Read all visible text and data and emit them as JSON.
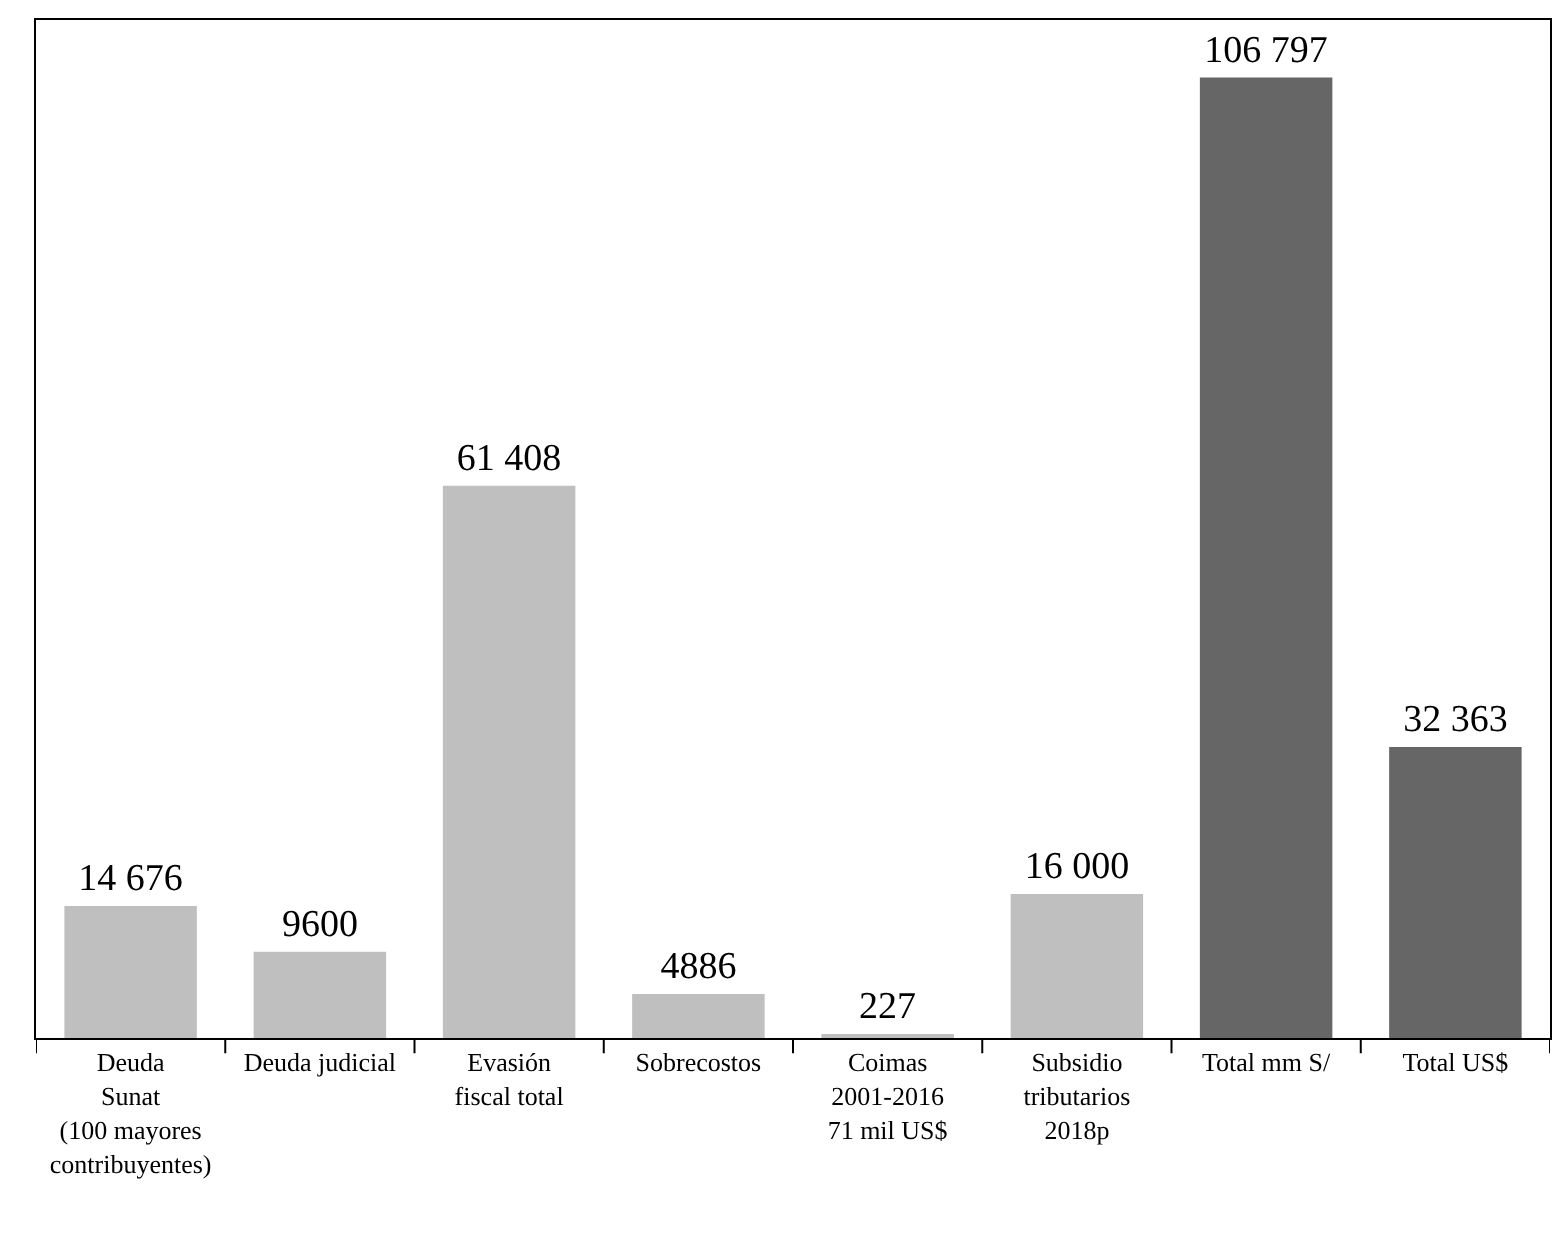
{
  "chart_data": {
    "type": "bar",
    "categories": [
      "Deuda\nSunat\n(100 mayores\ncontribuyentes)",
      "Deuda judicial",
      "Evasión\nfiscal total",
      "Sobrecostos",
      "Coimas\n2001-2016\n71 mil US$",
      "Subsidio\ntributarios\n2018p",
      "Total mm S/",
      "Total US$"
    ],
    "values": [
      14676,
      9600,
      61408,
      4886,
      227,
      16000,
      106797,
      32363
    ],
    "colors": [
      "#bfbfbf",
      "#bfbfbf",
      "#bfbfbf",
      "#bfbfbf",
      "#bfbfbf",
      "#bfbfbf",
      "#666666",
      "#666666"
    ],
    "value_labels": [
      "14 676",
      "9600",
      "61 408",
      "4886",
      "227",
      "16 000",
      "106 797",
      "32 363"
    ]
  }
}
